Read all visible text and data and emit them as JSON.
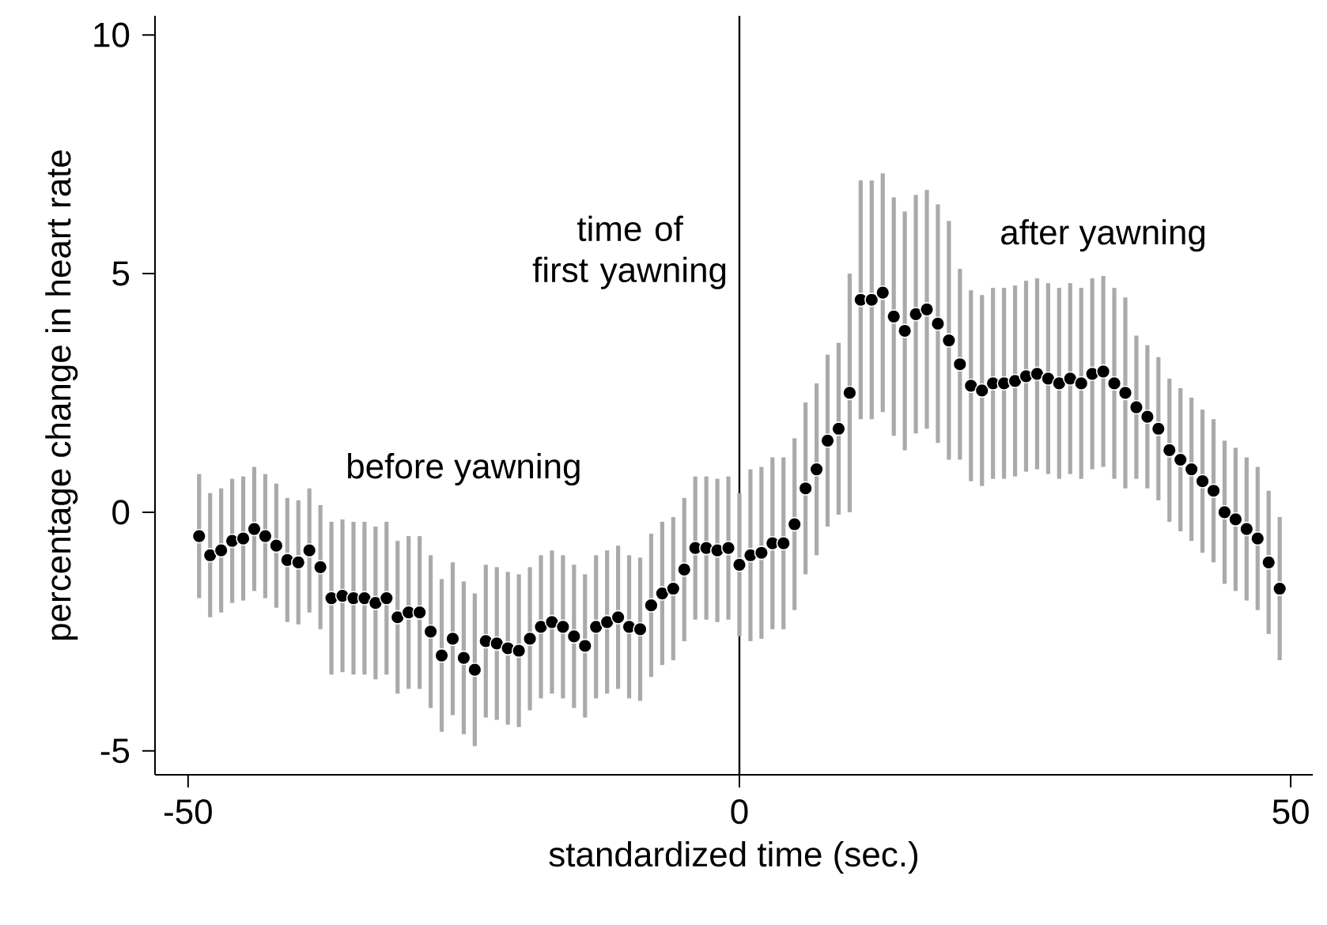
{
  "chart_data": {
    "type": "scatter",
    "xlabel": "standardized time (sec.)",
    "ylabel": "percentage change in heart rate",
    "x": [
      -49,
      -48,
      -47,
      -46,
      -45,
      -44,
      -43,
      -42,
      -41,
      -40,
      -39,
      -38,
      -37,
      -36,
      -35,
      -34,
      -33,
      -32,
      -31,
      -30,
      -29,
      -28,
      -27,
      -26,
      -25,
      -24,
      -23,
      -22,
      -21,
      -20,
      -19,
      -18,
      -17,
      -16,
      -15,
      -14,
      -13,
      -12,
      -11,
      -10,
      -9,
      -8,
      -7,
      -6,
      -5,
      -4,
      -3,
      -2,
      -1,
      0,
      1,
      2,
      3,
      4,
      5,
      6,
      7,
      8,
      9,
      10,
      11,
      12,
      13,
      14,
      15,
      16,
      17,
      18,
      19,
      20,
      21,
      22,
      23,
      24,
      25,
      26,
      27,
      28,
      29,
      30,
      31,
      32,
      33,
      34,
      35,
      36,
      37,
      38,
      39,
      40,
      41,
      42,
      43,
      44,
      45,
      46,
      47,
      48,
      49
    ],
    "series": [
      {
        "color": "#000000",
        "values": [
          -0.5,
          -0.9,
          -0.8,
          -0.6,
          -0.55,
          -0.35,
          -0.5,
          -0.7,
          -1.0,
          -1.05,
          -0.8,
          -1.15,
          -1.8,
          -1.75,
          -1.8,
          -1.8,
          -1.9,
          -1.8,
          -2.2,
          -2.1,
          -2.1,
          -2.5,
          -3.0,
          -2.65,
          -3.05,
          -3.3,
          -2.7,
          -2.75,
          -2.85,
          -2.9,
          -2.65,
          -2.4,
          -2.3,
          -2.4,
          -2.6,
          -2.8,
          -2.4,
          -2.3,
          -2.2,
          -2.4,
          -2.45,
          -1.95,
          -1.7,
          -1.6,
          -1.2,
          -0.75,
          -0.75,
          -0.8,
          -0.75,
          -1.1,
          -0.9,
          -0.85,
          -0.65,
          -0.65,
          -0.25,
          0.5,
          0.9,
          1.5,
          1.75,
          2.5,
          4.45,
          4.45,
          4.6,
          4.1,
          3.8,
          4.15,
          4.25,
          3.95,
          3.6,
          3.1,
          2.65,
          2.55,
          2.7,
          2.7,
          2.75,
          2.85,
          2.9,
          2.8,
          2.7,
          2.8,
          2.7,
          2.9,
          2.95,
          2.7,
          2.5,
          2.2,
          2.0,
          1.75,
          1.3,
          1.1,
          0.9,
          0.65,
          0.45,
          0.0,
          -0.15,
          -0.35,
          -0.55,
          -1.05,
          -1.6
        ],
        "errors": [
          1.3,
          1.3,
          1.3,
          1.3,
          1.3,
          1.3,
          1.3,
          1.3,
          1.3,
          1.3,
          1.3,
          1.3,
          1.6,
          1.6,
          1.6,
          1.6,
          1.6,
          1.6,
          1.6,
          1.6,
          1.6,
          1.6,
          1.6,
          1.6,
          1.6,
          1.6,
          1.6,
          1.6,
          1.6,
          1.6,
          1.5,
          1.5,
          1.5,
          1.5,
          1.5,
          1.5,
          1.5,
          1.5,
          1.5,
          1.5,
          1.5,
          1.5,
          1.5,
          1.5,
          1.5,
          1.5,
          1.5,
          1.5,
          1.5,
          1.5,
          1.8,
          1.8,
          1.8,
          1.8,
          1.8,
          1.8,
          1.8,
          1.8,
          1.8,
          2.5,
          2.5,
          2.5,
          2.5,
          2.5,
          2.5,
          2.5,
          2.5,
          2.5,
          2.5,
          2.0,
          2.0,
          2.0,
          2.0,
          2.0,
          2.0,
          2.0,
          2.0,
          2.0,
          2.0,
          2.0,
          2.0,
          2.0,
          2.0,
          2.0,
          2.0,
          1.5,
          1.5,
          1.5,
          1.5,
          1.5,
          1.5,
          1.5,
          1.5,
          1.5,
          1.5,
          1.5,
          1.5,
          1.5,
          1.5
        ]
      }
    ],
    "xlim": [
      -53,
      52
    ],
    "ylim": [
      -5.5,
      10.4
    ],
    "xticks": [
      -50,
      0,
      50
    ],
    "yticks": [
      -5,
      0,
      5,
      10
    ],
    "marker": "circle",
    "grid": false,
    "ref_lines": [
      {
        "axis": "x",
        "value": 0,
        "label": "time of first yawning",
        "color": "#000000"
      }
    ],
    "annotations": [
      "before yawning",
      "after yawning"
    ]
  }
}
